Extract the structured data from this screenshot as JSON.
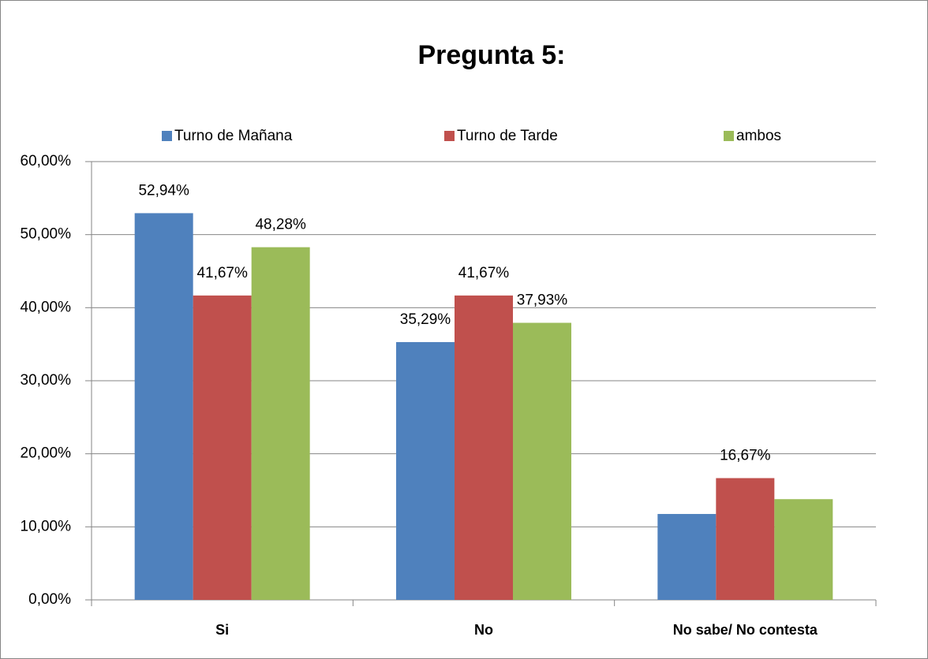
{
  "chart_data": {
    "type": "bar",
    "title": "Pregunta 5:",
    "categories": [
      "Si",
      "No",
      "No sabe/ No contesta"
    ],
    "series": [
      {
        "name": "Turno de Mañana",
        "color": "#4f81bd",
        "values": [
          52.94,
          35.29,
          11.76
        ],
        "value_labels": [
          "52,94%",
          "35,29%",
          null
        ]
      },
      {
        "name": "Turno de Tarde",
        "color": "#c0504d",
        "values": [
          41.67,
          41.67,
          16.67
        ],
        "value_labels": [
          "41,67%",
          "41,67%",
          "16,67%"
        ]
      },
      {
        "name": "ambos",
        "color": "#9bbb59",
        "values": [
          48.28,
          37.93,
          13.79
        ],
        "value_labels": [
          "48,28%",
          "37,93%",
          null
        ]
      }
    ],
    "ylim": [
      0,
      60
    ],
    "yticks": [
      {
        "value": 0,
        "label": "0,00%"
      },
      {
        "value": 10,
        "label": "10,00%"
      },
      {
        "value": 20,
        "label": "20,00%"
      },
      {
        "value": 30,
        "label": "30,00%"
      },
      {
        "value": 40,
        "label": "40,00%"
      },
      {
        "value": 50,
        "label": "50,00%"
      },
      {
        "value": 60,
        "label": "60,00%"
      }
    ],
    "grid": true,
    "legend": "top"
  }
}
